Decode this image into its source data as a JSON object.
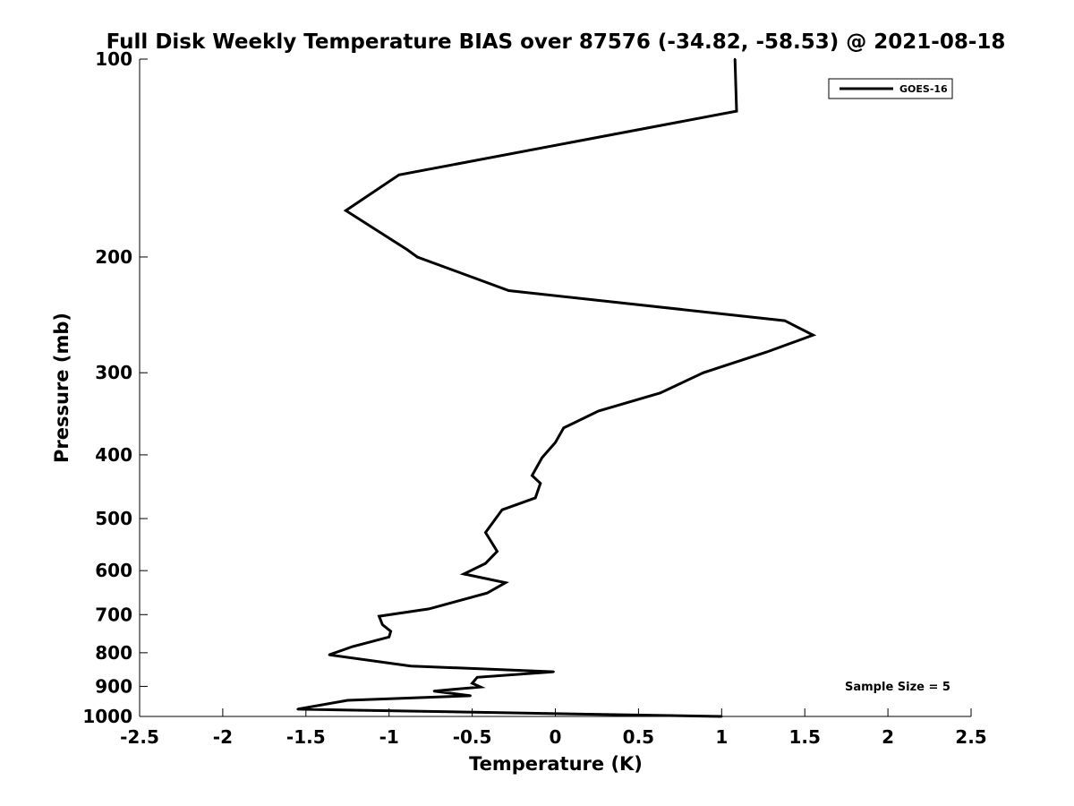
{
  "chart_data": {
    "type": "line",
    "title": "Full Disk Weekly Temperature BIAS over 87576 (-34.82, -58.53) @ 2021-08-18",
    "xlabel": "Temperature (K)",
    "ylabel": "Pressure (mb)",
    "xlim": [
      -2.5,
      2.5
    ],
    "ylim": [
      100,
      1000
    ],
    "y_scale": "log",
    "y_reversed": true,
    "x_ticks": [
      -2.5,
      -2,
      -1.5,
      -1,
      -0.5,
      0,
      0.5,
      1,
      1.5,
      2,
      2.5
    ],
    "x_tick_labels": [
      "-2.5",
      "-2",
      "-1.5",
      "-1",
      "-0.5",
      "0",
      "0.5",
      "1",
      "1.5",
      "2",
      "2.5"
    ],
    "y_ticks": [
      100,
      200,
      300,
      400,
      500,
      600,
      700,
      800,
      900,
      1000
    ],
    "y_tick_labels": [
      "100",
      "200",
      "300",
      "400",
      "500",
      "600",
      "700",
      "800",
      "900",
      "1000"
    ],
    "grid": false,
    "legend_position": "top-right",
    "annotation": "Sample Size = 5",
    "series": [
      {
        "name": "GOES-16",
        "color": "#000000",
        "points": [
          {
            "x": 1.08,
            "y": 100
          },
          {
            "x": 1.09,
            "y": 120
          },
          {
            "x": -0.94,
            "y": 150
          },
          {
            "x": -1.26,
            "y": 170
          },
          {
            "x": -0.89,
            "y": 195
          },
          {
            "x": -0.83,
            "y": 200
          },
          {
            "x": -0.28,
            "y": 225
          },
          {
            "x": 1.38,
            "y": 250
          },
          {
            "x": 1.55,
            "y": 263
          },
          {
            "x": 1.27,
            "y": 279
          },
          {
            "x": 0.89,
            "y": 300
          },
          {
            "x": 0.63,
            "y": 322
          },
          {
            "x": 0.26,
            "y": 343
          },
          {
            "x": 0.05,
            "y": 364
          },
          {
            "x": 0.0,
            "y": 383
          },
          {
            "x": -0.08,
            "y": 404
          },
          {
            "x": -0.14,
            "y": 430
          },
          {
            "x": -0.09,
            "y": 442
          },
          {
            "x": -0.12,
            "y": 465
          },
          {
            "x": -0.32,
            "y": 485
          },
          {
            "x": -0.42,
            "y": 525
          },
          {
            "x": -0.35,
            "y": 561
          },
          {
            "x": -0.42,
            "y": 585
          },
          {
            "x": -0.55,
            "y": 607
          },
          {
            "x": -0.3,
            "y": 626
          },
          {
            "x": -0.41,
            "y": 649
          },
          {
            "x": -0.76,
            "y": 686
          },
          {
            "x": -1.06,
            "y": 704
          },
          {
            "x": -1.04,
            "y": 725
          },
          {
            "x": -0.99,
            "y": 742
          },
          {
            "x": -1.0,
            "y": 757
          },
          {
            "x": -1.22,
            "y": 783
          },
          {
            "x": -1.36,
            "y": 806
          },
          {
            "x": -0.87,
            "y": 838
          },
          {
            "x": -0.01,
            "y": 855
          },
          {
            "x": -0.47,
            "y": 872
          },
          {
            "x": -0.5,
            "y": 890
          },
          {
            "x": -0.45,
            "y": 902
          },
          {
            "x": -0.73,
            "y": 915
          },
          {
            "x": -0.51,
            "y": 930
          },
          {
            "x": -1.25,
            "y": 945
          },
          {
            "x": -1.55,
            "y": 975
          },
          {
            "x": 1.0,
            "y": 1000
          }
        ]
      }
    ]
  }
}
